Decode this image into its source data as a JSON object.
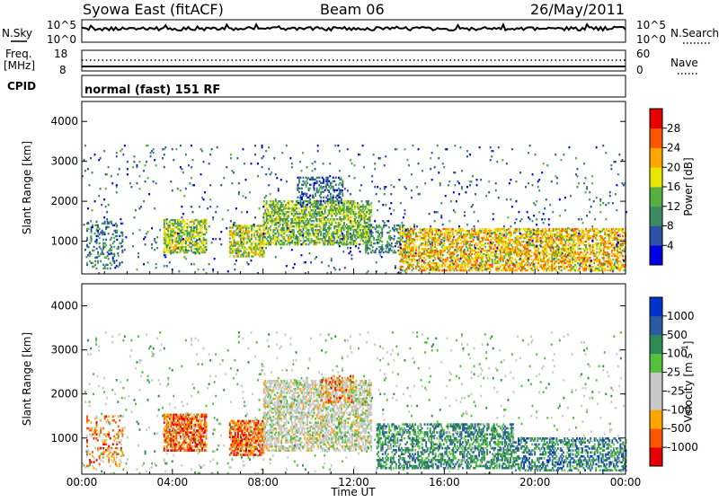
{
  "header": {
    "station": "Syowa East (fitACF)",
    "beam": "Beam 06",
    "date": "26/May/2011"
  },
  "noise_panel": {
    "left_label": "N.Sky",
    "right_label": "N.Search",
    "tick_high": "10^5",
    "tick_low": "10^0"
  },
  "freq_panel": {
    "left_label_1": "Freq.",
    "left_label_2": "[MHz]",
    "right_label": "Nave",
    "left_tick_high": "18",
    "left_tick_low": "8",
    "right_tick_high": "60",
    "right_tick_low": "0"
  },
  "cpid_panel": {
    "label": "CPID",
    "mode_text": "normal (fast) 151 RF"
  },
  "colors": {
    "power": [
      "#0000e6",
      "#2c52a8",
      "#3c8a64",
      "#55b040",
      "#e6e600",
      "#ffa500",
      "#ff5500",
      "#e60000"
    ],
    "velocity": [
      "#e60000",
      "#ff5500",
      "#ffa500",
      "#c8c8c8",
      "#c8c8c8",
      "#55c03c",
      "#2e8b57",
      "#2a5aa0",
      "#0033cc"
    ]
  },
  "chart_data": [
    {
      "type": "heatmap",
      "panel": "power",
      "ylabel": "Slant Range [km]",
      "xlim": [
        0,
        24
      ],
      "ylim": [
        180,
        4500
      ],
      "y_ticks": [
        1000,
        2000,
        3000,
        4000
      ],
      "colorbar_label": "Power [dB]",
      "colorbar_ticks": [
        4,
        8,
        12,
        16,
        20,
        24,
        28
      ],
      "colorbar_range": [
        0,
        32
      ],
      "echo_regions": [
        {
          "t0": 0.2,
          "t1": 1.8,
          "r0": 300,
          "r1": 1500,
          "level": 0.25,
          "density": 0.25
        },
        {
          "t0": 3.6,
          "t1": 5.5,
          "r0": 700,
          "r1": 1550,
          "level": 0.5,
          "density": 0.6
        },
        {
          "t0": 6.5,
          "t1": 8.0,
          "r0": 600,
          "r1": 1400,
          "level": 0.55,
          "density": 0.65
        },
        {
          "t0": 8.0,
          "t1": 12.8,
          "r0": 900,
          "r1": 2000,
          "level": 0.45,
          "density": 0.6
        },
        {
          "t0": 9.5,
          "t1": 11.5,
          "r0": 1900,
          "r1": 2600,
          "level": 0.2,
          "density": 0.35
        },
        {
          "t0": 12.5,
          "t1": 14.5,
          "r0": 700,
          "r1": 1400,
          "level": 0.3,
          "density": 0.35
        },
        {
          "t0": 14.0,
          "t1": 24.0,
          "r0": 250,
          "r1": 1300,
          "level": 0.65,
          "density": 0.55
        },
        {
          "t0": 0.0,
          "t1": 24.0,
          "r0": 180,
          "r1": 3400,
          "level": 0.2,
          "density": 0.03
        }
      ]
    },
    {
      "type": "heatmap",
      "panel": "velocity",
      "xlabel": "Time UT",
      "ylabel": "Slant Range [km]",
      "xlim": [
        0,
        24
      ],
      "ylim": [
        180,
        4500
      ],
      "x_ticks": [
        "00:00",
        "04:00",
        "08:00",
        "12:00",
        "16:00",
        "20:00",
        "00:00"
      ],
      "y_ticks": [
        1000,
        2000,
        3000,
        4000
      ],
      "colorbar_label": "Velocity [m s",
      "colorbar_label_sup": "-1",
      "colorbar_label_end": "]",
      "colorbar_ticks": [
        "1000",
        "500",
        "100",
        "25",
        "-25",
        "-100",
        "-500",
        "-1000"
      ],
      "echo_regions": [
        {
          "t0": 0.2,
          "t1": 1.8,
          "r0": 300,
          "r1": 1500,
          "level": 0.2,
          "density": 0.25
        },
        {
          "t0": 3.6,
          "t1": 5.5,
          "r0": 700,
          "r1": 1550,
          "level": 0.15,
          "density": 0.7
        },
        {
          "t0": 6.5,
          "t1": 8.0,
          "r0": 600,
          "r1": 1400,
          "level": 0.15,
          "density": 0.65
        },
        {
          "t0": 8.0,
          "t1": 12.8,
          "r0": 700,
          "r1": 2300,
          "level": 0.45,
          "density": 0.55
        },
        {
          "t0": 10.5,
          "t1": 12.0,
          "r0": 1800,
          "r1": 2400,
          "level": 0.2,
          "density": 0.3
        },
        {
          "t0": 13.0,
          "t1": 19.0,
          "r0": 300,
          "r1": 1300,
          "level": 0.75,
          "density": 0.5
        },
        {
          "t0": 19.0,
          "t1": 24.0,
          "r0": 250,
          "r1": 1000,
          "level": 0.8,
          "density": 0.45
        },
        {
          "t0": 0.0,
          "t1": 24.0,
          "r0": 180,
          "r1": 3400,
          "level": 0.55,
          "density": 0.03
        }
      ]
    }
  ]
}
